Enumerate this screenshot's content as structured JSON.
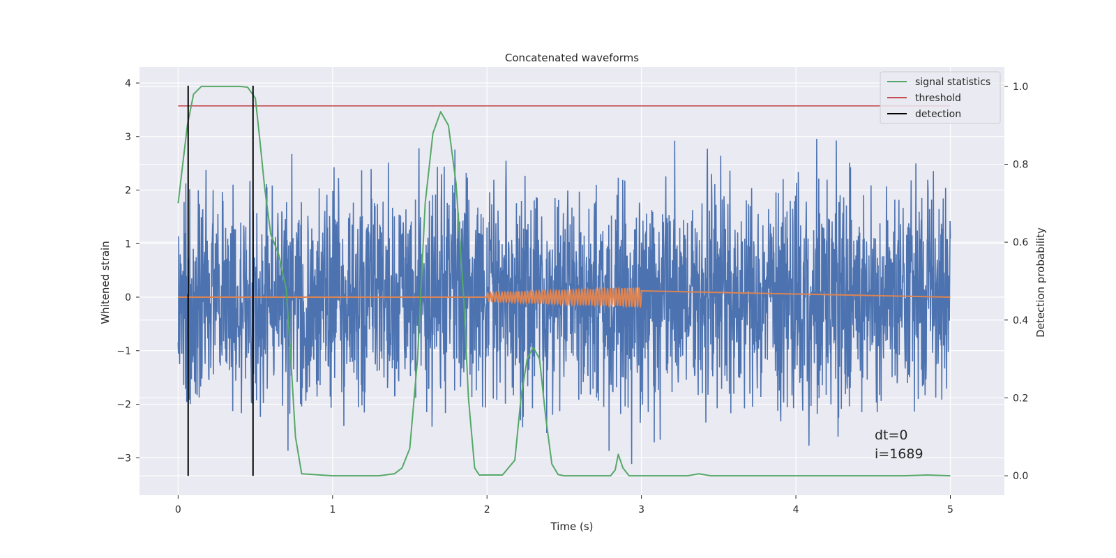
{
  "chart_data": {
    "type": "line",
    "title": "Concatenated waveforms",
    "xlabel": "Time (s)",
    "ylabel_left": "Whitened strain",
    "ylabel_right": "Detection probability",
    "xlim": [
      -0.25,
      5.35
    ],
    "ylim_left": [
      -3.7,
      4.3
    ],
    "ylim_right": [
      -0.05,
      1.05
    ],
    "x_ticks": [
      0,
      1,
      2,
      3,
      4,
      5
    ],
    "x_tick_labels": [
      "0",
      "1",
      "2",
      "3",
      "4",
      "5"
    ],
    "y_left_ticks": [
      -3,
      -2,
      -1,
      0,
      1,
      2,
      3,
      4
    ],
    "y_left_tick_labels": [
      "−3",
      "−2",
      "−1",
      "0",
      "1",
      "2",
      "3",
      "4"
    ],
    "y_right_ticks": [
      0.0,
      0.2,
      0.4,
      0.6,
      0.8,
      1.0
    ],
    "y_right_tick_labels": [
      "0.0",
      "0.2",
      "0.4",
      "0.6",
      "0.8",
      "1.0"
    ],
    "grid": true,
    "legend_position": "top-right",
    "legend": [
      {
        "label": "signal statistics",
        "color": "#55a868",
        "kind": "line"
      },
      {
        "label": "threshold",
        "color": "#c44e52",
        "kind": "line"
      },
      {
        "label": "detection",
        "color": "#000000",
        "kind": "line"
      }
    ],
    "noise": {
      "name": "whitened strain",
      "color": "#4c72b0",
      "x_range": [
        0,
        5
      ],
      "std": 1.0,
      "axis": "left"
    },
    "injection": {
      "name": "injected waveform",
      "color": "#dd8452",
      "x_range": [
        2,
        3
      ],
      "amp_start": 0.08,
      "amp_end": 0.18,
      "axis": "left"
    },
    "threshold": {
      "value": 0.95,
      "x_range": [
        0,
        5
      ],
      "axis": "right"
    },
    "detections": [
      0.065,
      0.485
    ],
    "signal_statistics": {
      "axis": "right",
      "x": [
        0.0,
        0.03,
        0.06,
        0.1,
        0.15,
        0.2,
        0.3,
        0.4,
        0.45,
        0.5,
        0.53,
        0.56,
        0.6,
        0.65,
        0.7,
        0.73,
        0.76,
        0.8,
        1.0,
        1.3,
        1.4,
        1.45,
        1.5,
        1.55,
        1.6,
        1.65,
        1.7,
        1.75,
        1.8,
        1.85,
        1.88,
        1.92,
        1.95,
        2.1,
        2.18,
        2.22,
        2.26,
        2.3,
        2.34,
        2.38,
        2.42,
        2.46,
        2.5,
        2.8,
        2.83,
        2.85,
        2.88,
        2.92,
        3.3,
        3.37,
        3.45,
        4.7,
        4.85,
        5.0
      ],
      "y": [
        0.7,
        0.8,
        0.9,
        0.98,
        1.0,
        1.0,
        1.0,
        1.0,
        0.998,
        0.97,
        0.86,
        0.74,
        0.62,
        0.57,
        0.48,
        0.3,
        0.1,
        0.005,
        0.0,
        0.0,
        0.005,
        0.02,
        0.07,
        0.3,
        0.7,
        0.88,
        0.935,
        0.9,
        0.75,
        0.45,
        0.2,
        0.02,
        0.002,
        0.002,
        0.04,
        0.2,
        0.3,
        0.33,
        0.3,
        0.15,
        0.03,
        0.003,
        0.0,
        0.0,
        0.015,
        0.055,
        0.02,
        0.0,
        0.0,
        0.005,
        0.0,
        0.0,
        0.002,
        0.0
      ]
    },
    "annotations": [
      "dt=0",
      "i=1689"
    ]
  }
}
